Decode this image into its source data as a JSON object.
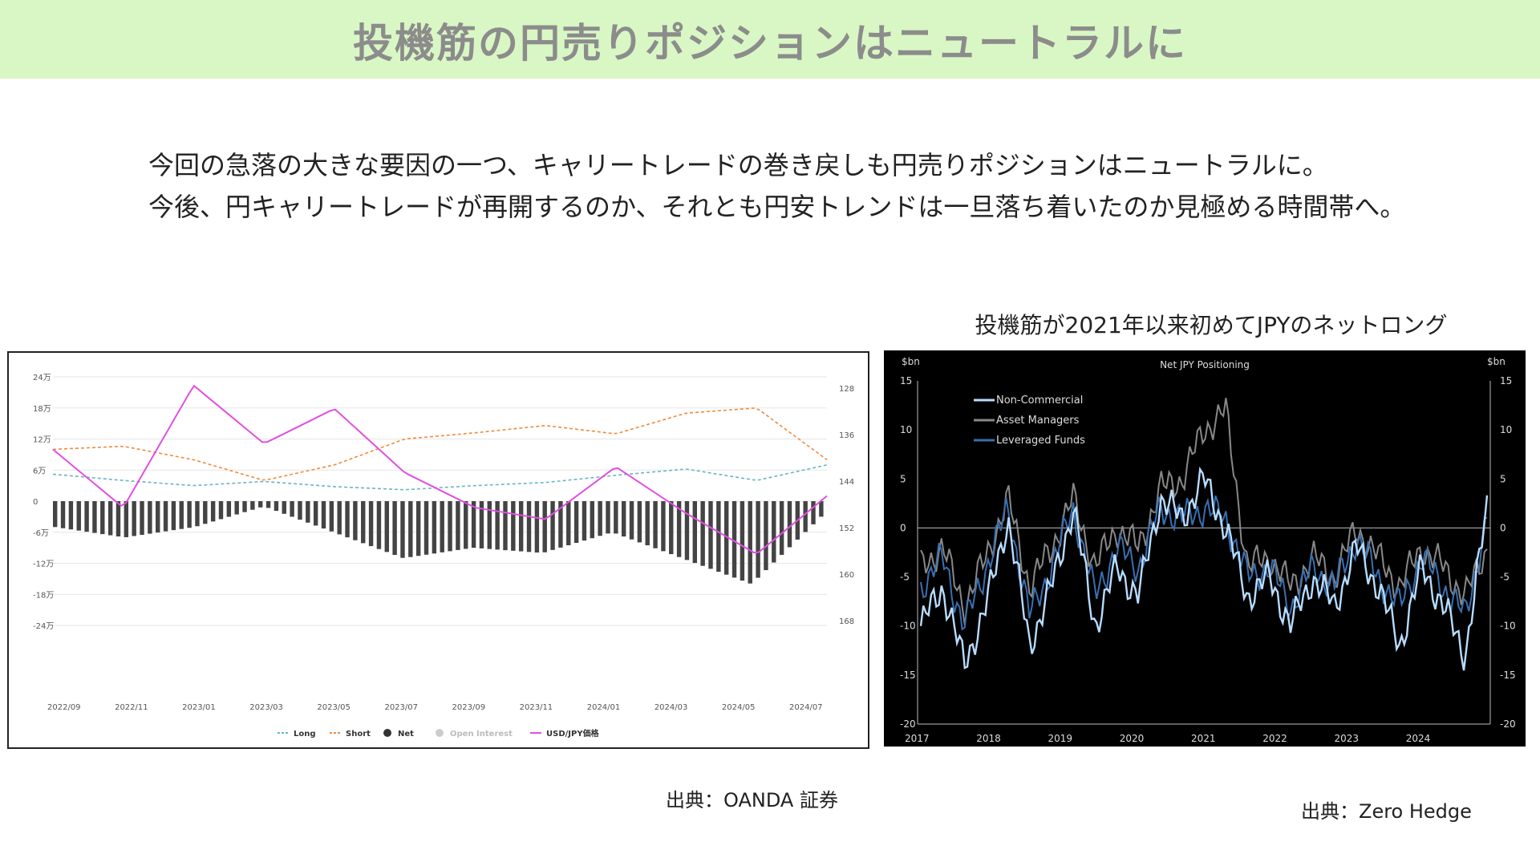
{
  "slide": {
    "title": "投機筋の円売りポジションはニュートラルに",
    "body_lines": [
      "今回の急落の大きな要因の一つ、キャリートレードの巻き戻しも円売りポジションはニュートラルに。",
      "今後、円キャリートレードが再開するのか、それとも円安トレンドは一旦落ち着いたのか見極める時間帯へ。"
    ],
    "source_left": "出典：OANDA 証券",
    "source_right": "出典：Zero Hedge",
    "right_caption": "投機筋が2021年以来初めてJPYのネットロング"
  },
  "chart_data": [
    {
      "type": "line",
      "title": "",
      "x": [
        "2022/09",
        "2022/11",
        "2023/01",
        "2023/03",
        "2023/05",
        "2023/07",
        "2023/09",
        "2023/11",
        "2024/01",
        "2024/03",
        "2024/05",
        "2024/07"
      ],
      "y_left_ticks": [
        "24万",
        "18万",
        "12万",
        "6万",
        "0",
        "-6万",
        "-12万",
        "-18万",
        "-24万"
      ],
      "y_right_ticks": [
        "128",
        "136",
        "144",
        "152",
        "160",
        "168"
      ],
      "ylim_left": [
        -240000,
        240000
      ],
      "ylim_right_inverted": [
        128,
        168
      ],
      "legend": [
        "Long",
        "Short",
        "Net",
        "Open Interest",
        "USD/JPY価格"
      ],
      "legend_position": "bottom",
      "series": [
        {
          "name": "Long",
          "style": "dashed",
          "color": "#6ab4c8",
          "values": [
            52,
            40,
            30,
            38,
            28,
            22,
            30,
            36,
            50,
            62,
            40,
            70
          ]
        },
        {
          "name": "Short",
          "style": "dashed",
          "color": "#f08a3c",
          "values": [
            100,
            106,
            80,
            40,
            70,
            120,
            132,
            146,
            130,
            170,
            180,
            80
          ]
        },
        {
          "name": "Net",
          "style": "bar",
          "color": "#444444",
          "values": [
            -50,
            -70,
            -50,
            -10,
            -60,
            -110,
            -90,
            -100,
            -60,
            -110,
            -160,
            -30
          ]
        },
        {
          "name": "USD/JPY価格",
          "style": "line",
          "color": "#e050e0",
          "values": [
            138,
            148,
            127,
            137,
            131,
            142,
            148,
            150,
            141,
            149,
            156,
            146
          ]
        }
      ]
    },
    {
      "type": "line",
      "title": "Net JPY Positioning",
      "ylabel_left": "$bn",
      "ylabel_right": "$bn",
      "x_ticks": [
        "2017",
        "2018",
        "2019",
        "2020",
        "2021",
        "2022",
        "2023",
        "2024"
      ],
      "y_ticks": [
        "15",
        "10",
        "5",
        "0",
        "-5",
        "-10",
        "-15",
        "-20"
      ],
      "ylim": [
        -20,
        15
      ],
      "legend_position": "top-left",
      "series": [
        {
          "name": "Non-Commercial",
          "color": "#b8dcff",
          "values": [
            -10,
            -6,
            -14,
            -8,
            1,
            -12,
            -6,
            2,
            -10,
            -4,
            -7,
            3,
            1,
            5,
            0,
            -7,
            -5,
            -10,
            -5,
            -8,
            -2,
            -6,
            -12,
            -4,
            -8,
            -13,
            2
          ]
        },
        {
          "name": "Asset Managers",
          "color": "#888888",
          "values": [
            -4,
            -2,
            -8,
            -3,
            3,
            -6,
            -2,
            3,
            -4,
            0,
            -2,
            4,
            5,
            10,
            12,
            -4,
            -3,
            -6,
            -3,
            -5,
            0,
            -3,
            -6,
            -2,
            -4,
            -7,
            -2
          ]
        },
        {
          "name": "Leveraged Funds",
          "color": "#3a6fb0",
          "values": [
            -6,
            -3,
            -10,
            -4,
            2,
            -9,
            -4,
            2,
            -7,
            -2,
            -4,
            2,
            1,
            2,
            1,
            -5,
            -4,
            -8,
            -4,
            -6,
            -1,
            -5,
            -8,
            -3,
            -6,
            -9,
            1
          ]
        }
      ]
    }
  ],
  "colors": {
    "title_band": "#d9f7c4",
    "title_text": "#8c8c8c"
  }
}
